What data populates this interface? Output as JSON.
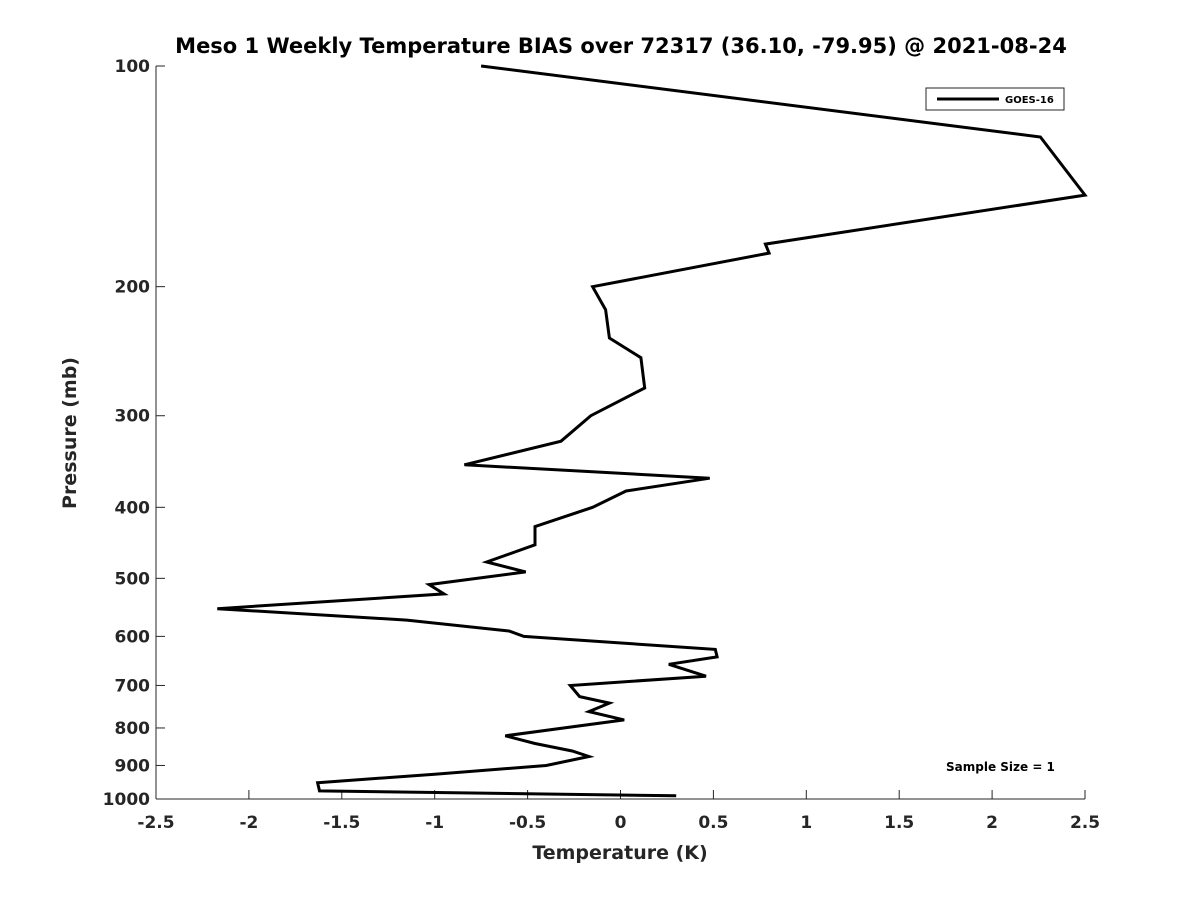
{
  "chart_data": {
    "type": "line",
    "title": "Meso 1 Weekly Temperature BIAS over 72317 (36.10, -79.95) @ 2021-08-24",
    "xlabel": "Temperature (K)",
    "ylabel": "Pressure (mb)",
    "xlim": [
      -2.5,
      2.5
    ],
    "ylim": [
      100,
      1000
    ],
    "y_scale": "log",
    "y_reversed": true,
    "x_ticks": [
      "-2.5",
      "-2",
      "-1.5",
      "-1",
      "-0.5",
      "0",
      "0.5",
      "1",
      "1.5",
      "2",
      "2.5"
    ],
    "y_ticks": [
      "100",
      "200",
      "300",
      "400",
      "500",
      "600",
      "700",
      "800",
      "900",
      "1000"
    ],
    "legend_position": "top-right",
    "grid": false,
    "annotation": "Sample Size = 1",
    "series": [
      {
        "name": "GOES-16",
        "color": "#000000",
        "points": [
          [
            -0.75,
            100
          ],
          [
            2.26,
            125
          ],
          [
            2.5,
            150
          ],
          [
            0.78,
            175
          ],
          [
            0.8,
            180
          ],
          [
            -0.15,
            200
          ],
          [
            -0.08,
            215
          ],
          [
            -0.06,
            235
          ],
          [
            0.11,
            250
          ],
          [
            0.13,
            275
          ],
          [
            -0.16,
            300
          ],
          [
            -0.32,
            325
          ],
          [
            -0.84,
            350
          ],
          [
            0.48,
            365
          ],
          [
            0.03,
            380
          ],
          [
            -0.15,
            400
          ],
          [
            -0.46,
            425
          ],
          [
            -0.46,
            450
          ],
          [
            -0.72,
            475
          ],
          [
            -0.51,
            490
          ],
          [
            -1.03,
            510
          ],
          [
            -0.95,
            525
          ],
          [
            -2.17,
            550
          ],
          [
            -1.15,
            570
          ],
          [
            -0.6,
            590
          ],
          [
            -0.52,
            600
          ],
          [
            0.51,
            625
          ],
          [
            0.52,
            640
          ],
          [
            0.26,
            655
          ],
          [
            0.46,
            680
          ],
          [
            -0.27,
            700
          ],
          [
            -0.22,
            725
          ],
          [
            -0.06,
            740
          ],
          [
            -0.17,
            760
          ],
          [
            0.02,
            780
          ],
          [
            -0.62,
            820
          ],
          [
            -0.46,
            840
          ],
          [
            -0.26,
            860
          ],
          [
            -0.17,
            875
          ],
          [
            -0.4,
            900
          ],
          [
            -1.0,
            925
          ],
          [
            -1.63,
            950
          ],
          [
            -1.62,
            975
          ],
          [
            0.3,
            990
          ]
        ]
      }
    ]
  }
}
